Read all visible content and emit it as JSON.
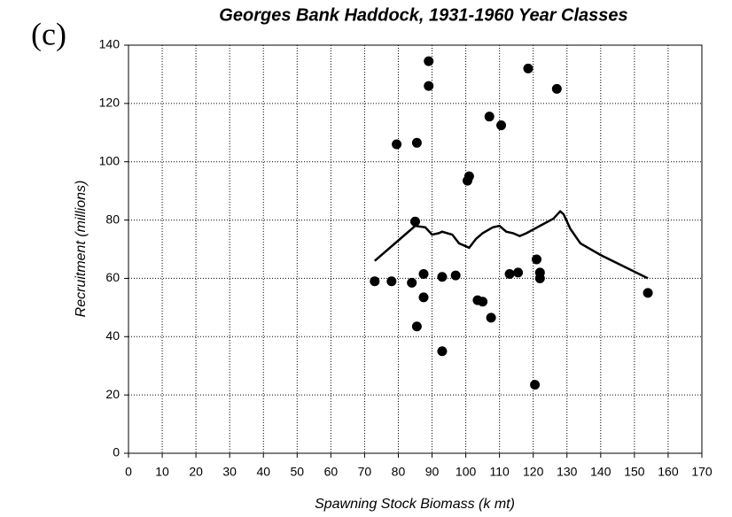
{
  "chart_data": {
    "type": "scatter",
    "panel_label": "(c)",
    "title": "Georges Bank Haddock, 1931-1960 Year Classes",
    "x_label": "Spawning Stock Biomass (k mt)",
    "y_label": "Recruitment (millions)",
    "xlim": [
      0,
      170
    ],
    "xticks": [
      0,
      10,
      20,
      30,
      40,
      50,
      60,
      70,
      80,
      90,
      100,
      110,
      120,
      130,
      140,
      150,
      160,
      170
    ],
    "ylim": [
      0,
      140
    ],
    "yticks": [
      0,
      20,
      40,
      60,
      80,
      100,
      120,
      140
    ],
    "grid": true,
    "points": {
      "color": "#000000",
      "x": [
        73,
        78,
        79.5,
        84,
        85,
        85.5,
        85.5,
        87.5,
        87.5,
        89,
        89,
        93,
        93,
        97,
        100.5,
        101,
        103.5,
        105,
        107,
        107.5,
        110.5,
        113,
        115.5,
        118.5,
        120.5,
        121,
        122,
        122,
        127,
        154
      ],
      "y": [
        59,
        59,
        106,
        58.5,
        79.5,
        43.5,
        106.5,
        61.5,
        53.5,
        134.5,
        126,
        60.5,
        35,
        61,
        93.5,
        95,
        52.5,
        52,
        115.5,
        46.5,
        112.5,
        61.5,
        62,
        132,
        23.5,
        66.5,
        60,
        62,
        125,
        55
      ]
    },
    "line": {
      "color": "#000000",
      "x": [
        73,
        80,
        85,
        88,
        90,
        92,
        93,
        96,
        98,
        100,
        101,
        103,
        105,
        108,
        110,
        112,
        114,
        116,
        118,
        122,
        126,
        128,
        129,
        131,
        134,
        140,
        154
      ],
      "y": [
        66,
        73,
        78,
        77.5,
        75,
        75.5,
        76,
        75,
        72,
        71,
        70.5,
        73.5,
        75.5,
        77.5,
        78,
        76,
        75.5,
        74.5,
        75.5,
        78,
        80.5,
        83,
        82,
        77,
        72,
        68,
        60
      ]
    }
  }
}
